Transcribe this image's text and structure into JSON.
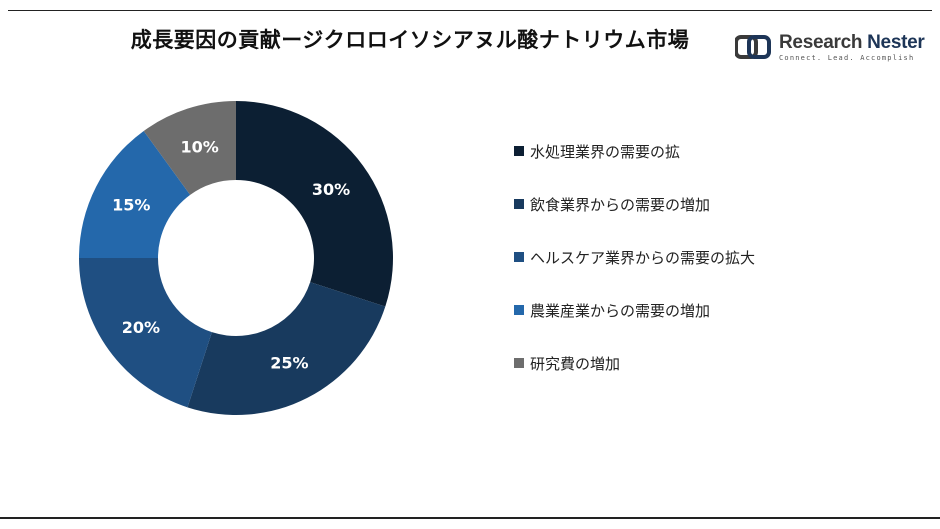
{
  "title": "成長要因の貢献ージクロロイソシアヌル酸ナトリウム市場",
  "logo": {
    "name_part1": "Research",
    "name_part2": "Nester",
    "tagline": "Connect. Lead. Accomplish"
  },
  "chart_data": {
    "type": "pie",
    "donut": true,
    "categories": [
      "水処理業界の需要の拡",
      "飲食業界からの需要の増加",
      "ヘルスケア業界からの需要の拡大",
      "農業産業からの需要の増加",
      "研究費の増加"
    ],
    "values": [
      30,
      25,
      20,
      15,
      10
    ],
    "data_labels": [
      "30%",
      "25%",
      "20%",
      "15%",
      "10%"
    ],
    "colors": [
      "#0c1f33",
      "#183a5e",
      "#1f4f82",
      "#2468ab",
      "#6d6d6d"
    ],
    "legend_position": "right"
  }
}
